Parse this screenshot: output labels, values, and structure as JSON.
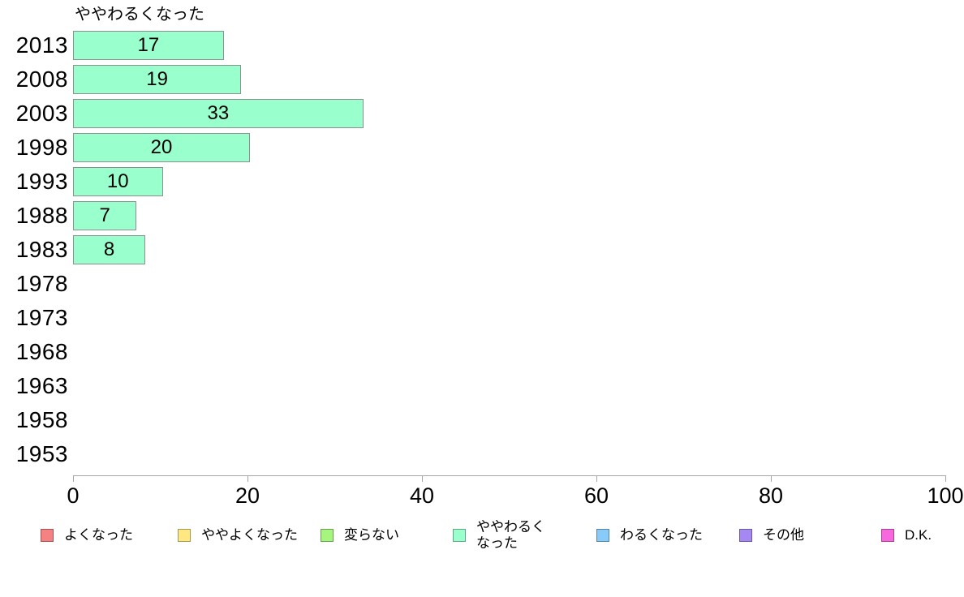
{
  "chart_data": {
    "type": "bar",
    "orientation": "horizontal",
    "title": "ややわるくなった",
    "categories": [
      "2013",
      "2008",
      "2003",
      "1998",
      "1993",
      "1988",
      "1983",
      "1978",
      "1973",
      "1968",
      "1963",
      "1958",
      "1953"
    ],
    "values": [
      17,
      19,
      33,
      20,
      10,
      7,
      8,
      null,
      null,
      null,
      null,
      null,
      null
    ],
    "xlabel": "",
    "ylabel": "",
    "xlim": [
      0,
      100
    ],
    "x_ticks": [
      0,
      20,
      40,
      60,
      80,
      100
    ],
    "grid": "off",
    "value_labels": "inside-center",
    "bar_fill_color": "#99ffcc",
    "bar_border_color": "#8f8f8f",
    "axis_color": "#a6a6a6",
    "legend_position": "bottom"
  },
  "legend": {
    "items": [
      {
        "label": "よくなった",
        "color": "#f58282"
      },
      {
        "label": "ややよくなった",
        "color": "#ffe882"
      },
      {
        "label": "変らない",
        "color": "#a5f57f"
      },
      {
        "label": "ややわるくなった",
        "color": "#99ffcc"
      },
      {
        "label": "わるくなった",
        "color": "#88caf8"
      },
      {
        "label": "その他",
        "color": "#a688f2"
      },
      {
        "label": "D.K.",
        "color": "#f768de"
      }
    ]
  }
}
